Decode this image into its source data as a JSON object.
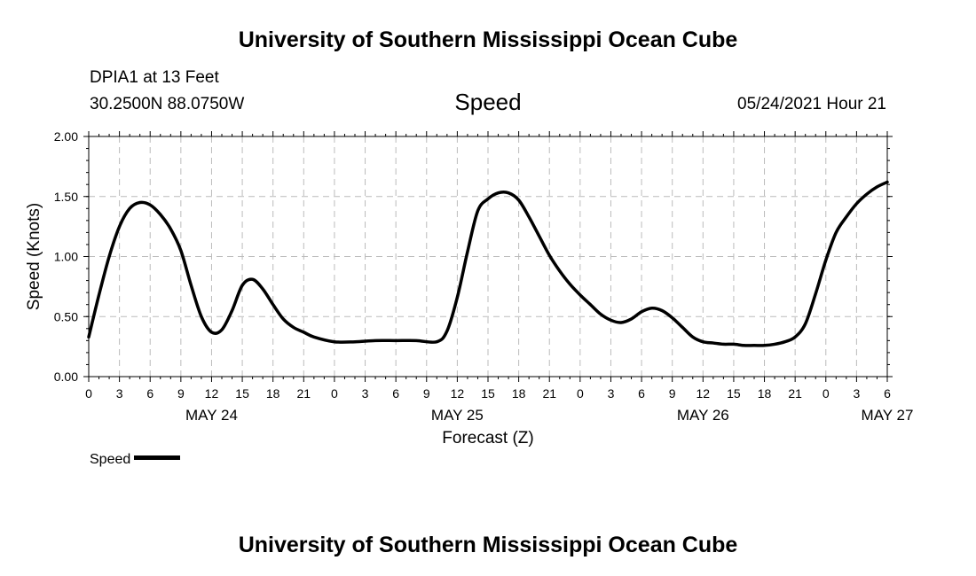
{
  "header": {
    "title": "University of Southern Mississippi Ocean Cube",
    "station": "DPIA1 at 13 Feet",
    "coords": "30.2500N  88.0750W",
    "variable": "Speed",
    "datetime": "05/24/2021 Hour 21"
  },
  "footer": {
    "title": "University of Southern Mississippi Ocean Cube"
  },
  "legend": {
    "label": "Speed",
    "color": "#000000"
  },
  "chart_data": {
    "type": "line",
    "title": "Speed",
    "xlabel": "Forecast (Z)",
    "ylabel": "Speed (Knots)",
    "ylim": [
      0,
      2
    ],
    "y_ticks": [
      "0.00",
      "0.50",
      "1.00",
      "1.50",
      "2.00"
    ],
    "xlim": [
      0,
      78
    ],
    "x_tick_labels": [
      "0",
      "3",
      "6",
      "9",
      "12",
      "15",
      "18",
      "21",
      "0",
      "3",
      "6",
      "9",
      "12",
      "15",
      "18",
      "21",
      "0",
      "3",
      "6",
      "9",
      "12",
      "15",
      "18",
      "21",
      "0",
      "3",
      "6"
    ],
    "day_labels": [
      {
        "label": "MAY 24",
        "hour": 12
      },
      {
        "label": "MAY 25",
        "hour": 36
      },
      {
        "label": "MAY 26",
        "hour": 60
      },
      {
        "label": "MAY 27",
        "hour": 78
      }
    ],
    "grid": true,
    "series": [
      {
        "name": "Speed",
        "color": "#000000",
        "x": [
          0,
          1,
          2,
          3,
          4,
          5,
          6,
          7,
          8,
          9,
          10,
          11,
          12,
          13,
          14,
          15,
          16,
          17,
          18,
          19,
          20,
          21,
          22,
          24,
          26,
          28,
          30,
          32,
          34,
          35,
          36,
          37,
          38,
          39,
          40,
          41,
          42,
          43,
          44,
          45,
          46,
          47,
          48,
          49,
          50,
          51,
          52,
          53,
          54,
          55,
          56,
          57,
          58,
          59,
          60,
          61,
          62,
          63,
          64,
          65,
          66,
          67,
          68,
          69,
          70,
          71,
          72,
          73,
          74,
          75,
          76,
          77,
          78
        ],
        "values": [
          0.33,
          0.68,
          1.0,
          1.25,
          1.4,
          1.45,
          1.43,
          1.35,
          1.23,
          1.05,
          0.76,
          0.5,
          0.37,
          0.39,
          0.55,
          0.76,
          0.81,
          0.73,
          0.6,
          0.48,
          0.41,
          0.37,
          0.33,
          0.29,
          0.29,
          0.3,
          0.3,
          0.3,
          0.29,
          0.38,
          0.66,
          1.04,
          1.38,
          1.48,
          1.53,
          1.53,
          1.47,
          1.33,
          1.17,
          1.01,
          0.88,
          0.77,
          0.68,
          0.6,
          0.52,
          0.47,
          0.45,
          0.48,
          0.54,
          0.57,
          0.55,
          0.49,
          0.41,
          0.33,
          0.29,
          0.28,
          0.27,
          0.27,
          0.26,
          0.26,
          0.26,
          0.27,
          0.29,
          0.33,
          0.44,
          0.69,
          0.97,
          1.2,
          1.33,
          1.44,
          1.52,
          1.58,
          1.62
        ]
      }
    ]
  }
}
